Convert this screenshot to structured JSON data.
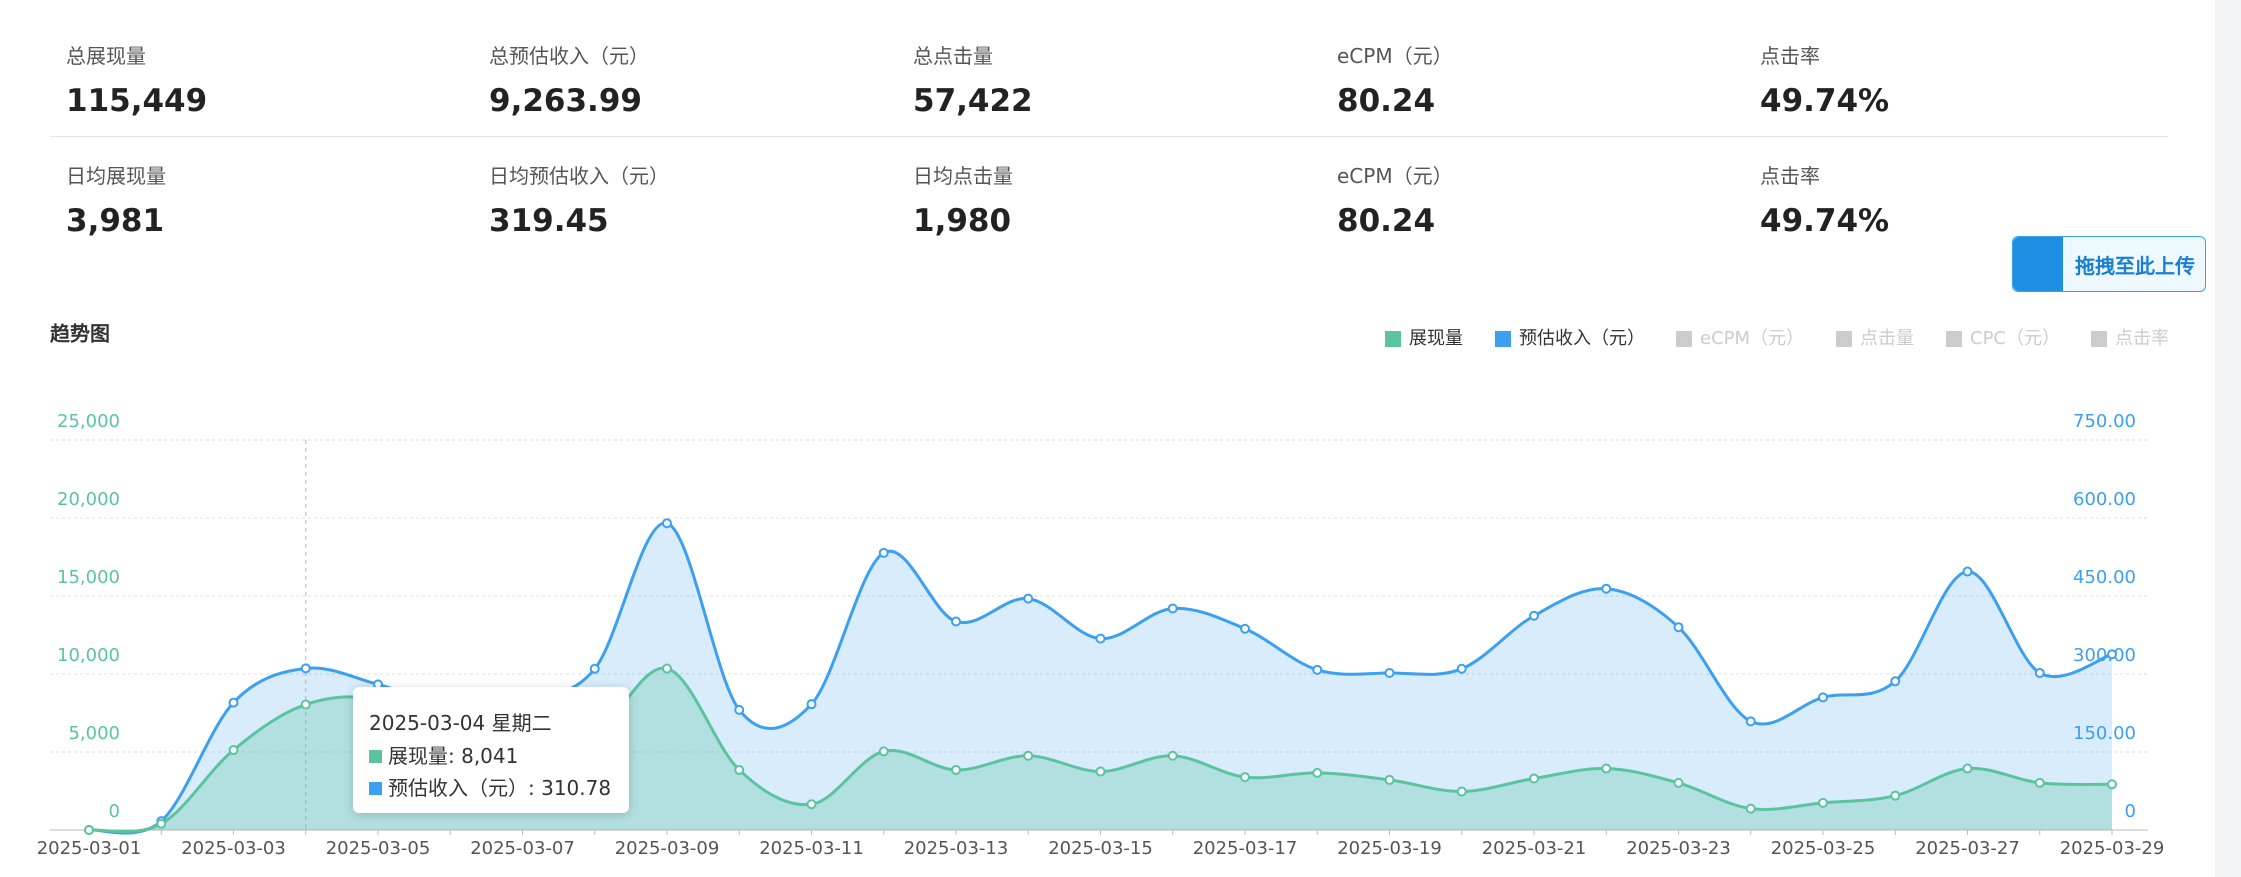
{
  "stats": {
    "rows": [
      {
        "items": [
          {
            "label": "总展现量",
            "value": "115,449"
          },
          {
            "label": "总预估收入（元）",
            "value": "9,263.99"
          },
          {
            "label": "总点击量",
            "value": "57,422"
          },
          {
            "label": "eCPM（元）",
            "value": "80.24"
          },
          {
            "label": "点击率",
            "value": "49.74%"
          }
        ]
      },
      {
        "items": [
          {
            "label": "日均展现量",
            "value": "3,981"
          },
          {
            "label": "日均预估收入（元）",
            "value": "319.45"
          },
          {
            "label": "日均点击量",
            "value": "1,980"
          },
          {
            "label": "eCPM（元）",
            "value": "80.24"
          },
          {
            "label": "点击率",
            "value": "49.74%"
          }
        ]
      }
    ]
  },
  "upload_button": "拖拽至此上传",
  "chart_data": {
    "type": "area",
    "title": "趋势图",
    "categories": [
      "2025-03-01",
      null,
      "2025-03-03",
      null,
      "2025-03-05",
      null,
      "2025-03-07",
      null,
      "2025-03-09",
      null,
      "2025-03-11",
      null,
      "2025-03-13",
      null,
      "2025-03-15",
      null,
      "2025-03-17",
      null,
      "2025-03-19",
      null,
      "2025-03-21",
      null,
      "2025-03-23",
      null,
      "2025-03-25",
      null,
      "2025-03-27",
      null,
      "2025-03-29"
    ],
    "series": [
      {
        "name": "展现量",
        "color": "#5bc49f",
        "values": [
          0,
          400,
          5130,
          8041,
          8240,
          5000,
          4000,
          6000,
          10350,
          3850,
          1650,
          5040,
          3850,
          4760,
          3750,
          4760,
          3390,
          3660,
          3210,
          2470,
          3300,
          3940,
          3020,
          1370,
          1740,
          2200,
          3940,
          3020,
          2930
        ]
      },
      {
        "name": "预估收入（元）",
        "color": "#3d9ff0",
        "axis": "y2",
        "values": [
          0,
          17,
          245,
          310.78,
          280,
          240,
          250,
          310,
          590,
          231,
          242,
          533,
          401,
          445,
          368,
          426,
          387,
          308,
          302,
          310,
          412,
          464,
          390,
          209,
          255,
          286,
          497,
          302,
          338
        ]
      }
    ],
    "inactive_legend": [
      "eCPM（元）",
      "点击量",
      "CPC（元）",
      "点击率"
    ],
    "ylim": [
      0,
      25000
    ],
    "yticks": [
      0,
      {
        "value": 5000,
        "label": "5,000"
      },
      {
        "value": 10000,
        "label": "10,000"
      },
      {
        "value": 15000,
        "label": "15,000"
      },
      {
        "value": 20000,
        "label": "20,000"
      },
      {
        "value": 25000,
        "label": "25,000"
      }
    ],
    "y2lim": [
      0,
      750
    ],
    "y2ticks": [
      0,
      {
        "value": 150,
        "label": "150.00"
      },
      {
        "value": 300,
        "label": "300.00"
      },
      {
        "value": 450,
        "label": "450.00"
      },
      {
        "value": 600,
        "label": "600.00"
      },
      {
        "value": 750,
        "label": "750.00"
      }
    ],
    "grid": true,
    "tooltip": {
      "index": 3,
      "title": "2025-03-04 星期二",
      "rows": [
        "展现量: 8,041",
        "预估收入（元）: 310.78"
      ]
    }
  }
}
